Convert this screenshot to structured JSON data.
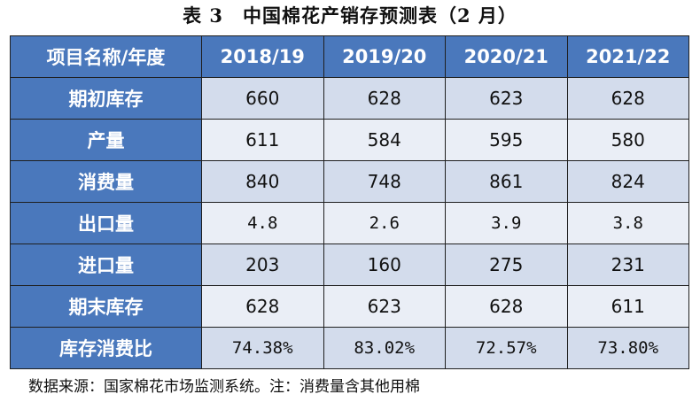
{
  "title": "表 3　中国棉花产销存预测表（2 月）",
  "table": {
    "header": {
      "label": "项目名称/年度",
      "years": [
        "2018/19",
        "2019/20",
        "2020/21",
        "2021/22"
      ]
    },
    "rows": [
      {
        "label": "期初库存",
        "values": [
          "660",
          "628",
          "623",
          "628"
        ]
      },
      {
        "label": "产量",
        "values": [
          "611",
          "584",
          "595",
          "580"
        ]
      },
      {
        "label": "消费量",
        "values": [
          "840",
          "748",
          "861",
          "824"
        ]
      },
      {
        "label": "出口量",
        "values": [
          "4.8",
          "2.6",
          "3.9",
          "3.8"
        ]
      },
      {
        "label": "进口量",
        "values": [
          "203",
          "160",
          "275",
          "231"
        ]
      },
      {
        "label": "期末库存",
        "values": [
          "628",
          "623",
          "628",
          "611"
        ]
      },
      {
        "label": "库存消费比",
        "values": [
          "74.38%",
          "83.02%",
          "72.57%",
          "73.80%"
        ]
      }
    ]
  },
  "footnote": "数据来源：国家棉花市场监测系统。注：消费量含其他用棉",
  "colors": {
    "header_bg": "#4a78bc",
    "row_even_bg": "#d3dcec",
    "row_odd_bg": "#eaeef6"
  }
}
